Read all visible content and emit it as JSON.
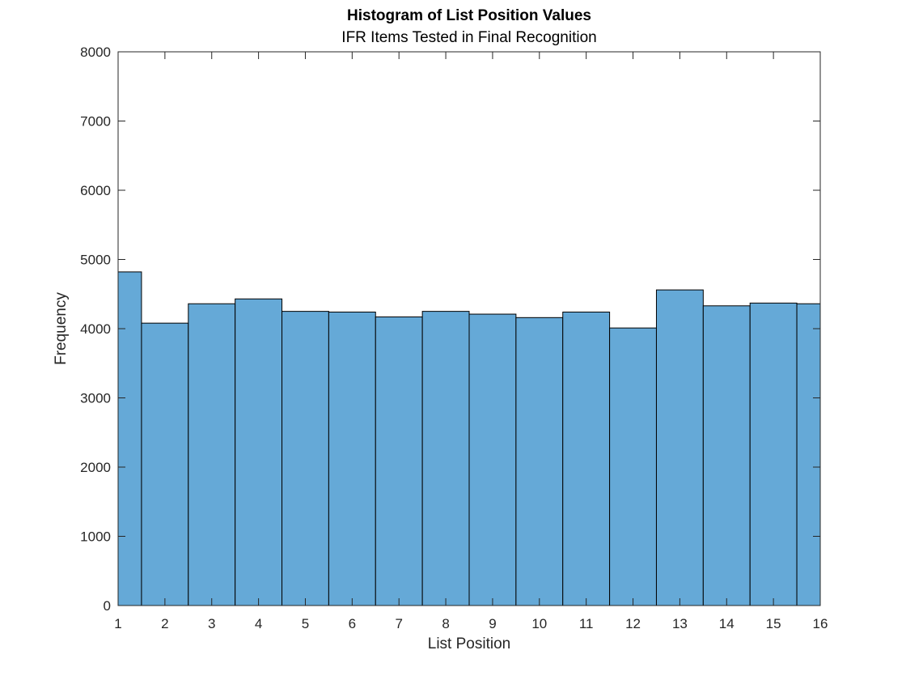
{
  "chart_data": {
    "type": "bar",
    "title": "Histogram of List Position Values",
    "subtitle": "IFR Items Tested in Final Recognition",
    "xlabel": "List Position",
    "ylabel": "Frequency",
    "xlim": [
      1,
      16
    ],
    "ylim": [
      0,
      8000
    ],
    "x_ticks": [
      1,
      2,
      3,
      4,
      5,
      6,
      7,
      8,
      9,
      10,
      11,
      12,
      13,
      14,
      15,
      16
    ],
    "y_ticks": [
      0,
      1000,
      2000,
      3000,
      4000,
      5000,
      6000,
      7000,
      8000
    ],
    "bin_edges": [
      1,
      1.5,
      2.5,
      3.5,
      4.5,
      5.5,
      6.5,
      7.5,
      8.5,
      9.5,
      10.5,
      11.5,
      12.5,
      13.5,
      14.5,
      15.5,
      16
    ],
    "values": [
      4820,
      4080,
      4360,
      4430,
      4250,
      4240,
      4170,
      4250,
      4210,
      4160,
      4240,
      4010,
      4560,
      4330,
      4370,
      4360
    ],
    "bar_color": "#65a9d7",
    "edge_color": "#000000",
    "grid": false
  }
}
